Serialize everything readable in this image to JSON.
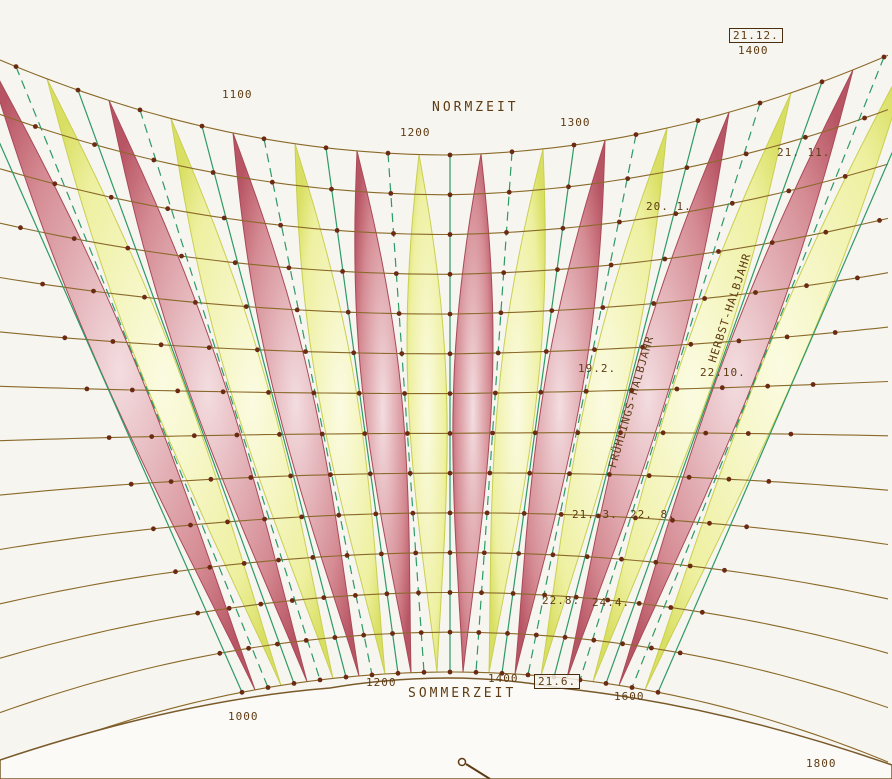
{
  "top_label": "NORMZEIT",
  "bottom_label": "SOMMERZEIT",
  "hour_labels_top": [
    "1100",
    "1200",
    "1300",
    "1400"
  ],
  "hour_labels_bottom": [
    "1000",
    "1200",
    "1400",
    "1600",
    "1800"
  ],
  "date_boxes": [
    "21.12.",
    "21.6."
  ],
  "date_labels": [
    "21. 11.",
    "20. 1.",
    "22.10.",
    "19.2.",
    "21. 3.",
    "22. 8.",
    "22.8.",
    "24.4."
  ],
  "half_year_labels": [
    "FRÜHLINGS-HALBJAHR",
    "HERBST-HALBJAHR"
  ],
  "colors": {
    "background": "#f7f5ef",
    "pink_lobe": "#c9707a",
    "yellow_lobe": "#e6ea86",
    "date_line": "#8a6a2a",
    "hour_line": "#2e9a66",
    "dot": "#6b2a12",
    "ink": "#5e3c14"
  }
}
